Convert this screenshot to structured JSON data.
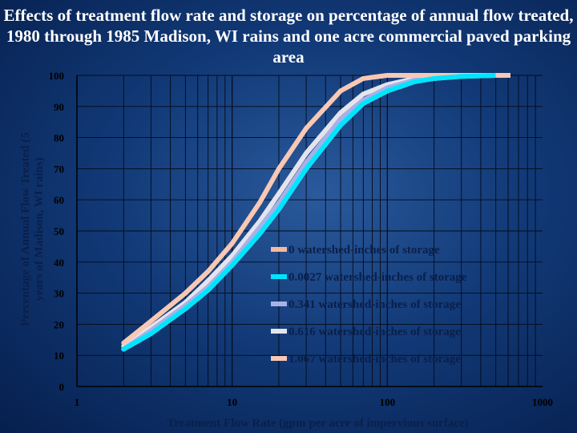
{
  "chart_data": {
    "type": "line",
    "title": "Effects of treatment flow rate and storage on percentage of annual flow treated, 1980 through 1985 Madison, WI rains and one acre commercial paved parking area",
    "xlabel": "Treatment Flow Rate (gpm per acre of impervious surface)",
    "ylabel": "Percentage of Annual Flow Treated (5 years of Madison, WI rains)",
    "xscale": "log",
    "xlim": [
      1,
      1000
    ],
    "ylim": [
      0,
      100
    ],
    "x_ticks": [
      "1",
      "10",
      "100",
      "1000"
    ],
    "y_ticks": [
      "0",
      "10",
      "20",
      "30",
      "40",
      "50",
      "60",
      "70",
      "80",
      "90",
      "100"
    ],
    "grid": true,
    "legend_position": "center-right",
    "series": [
      {
        "name": "0 watershed-inches of storage",
        "color": "#f7b8a0",
        "x": [
          2,
          3,
          5,
          7,
          10,
          15,
          20,
          30,
          50,
          70,
          100,
          150,
          200,
          300,
          500
        ],
        "y": [
          12,
          17,
          25,
          31,
          39,
          49,
          57,
          70,
          84,
          91,
          95,
          98,
          99,
          99.7,
          100
        ]
      },
      {
        "name": "0.0027 watershed-inches of storage",
        "color": "#00e5ff",
        "x": [
          2,
          3,
          5,
          7,
          10,
          15,
          20,
          30,
          50,
          70,
          100,
          150,
          200,
          300,
          500
        ],
        "y": [
          12,
          17,
          25,
          31,
          39,
          49,
          57,
          70,
          84,
          91,
          95,
          98,
          99,
          99.7,
          100
        ]
      },
      {
        "name": "0.341 watershed-inches of storage",
        "color": "#a8b0e8",
        "x": [
          2,
          3,
          5,
          7,
          10,
          15,
          20,
          30,
          50,
          70,
          100,
          150,
          200,
          300,
          500
        ],
        "y": [
          12,
          18,
          26,
          32,
          40,
          51,
          59,
          72,
          86,
          92,
          96,
          98.5,
          99.3,
          99.8,
          100
        ]
      },
      {
        "name": "0.616 watershed-inches of storage",
        "color": "#e4e4ec",
        "x": [
          2,
          3,
          5,
          7,
          10,
          15,
          20,
          30,
          50,
          70,
          100,
          150,
          200,
          300,
          500
        ],
        "y": [
          13,
          19,
          27,
          34,
          42,
          53,
          62,
          75,
          88,
          94,
          97,
          99,
          99.6,
          100,
          100
        ]
      },
      {
        "name": "1.067 watershed-inches of storage",
        "color": "#f7c8b4",
        "x": [
          2,
          3,
          5,
          7,
          10,
          15,
          20,
          30,
          50,
          70,
          100,
          150,
          200,
          300,
          500
        ],
        "y": [
          14,
          21,
          30,
          37,
          46,
          59,
          70,
          83,
          95,
          99,
          100,
          100,
          100,
          100,
          100
        ]
      }
    ]
  }
}
